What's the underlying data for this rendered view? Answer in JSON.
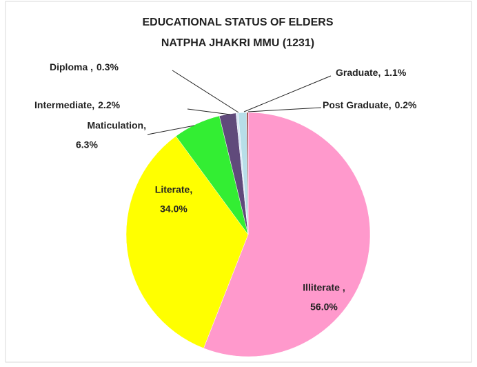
{
  "chart_data": {
    "type": "pie",
    "title": "EDUCATIONAL STATUS OF ELDERS",
    "subtitle": "NATPHA JHAKRI MMU (1231)",
    "categories": [
      "Illiterate ,",
      "Literate,",
      "Maticulation,",
      "Intermediate,",
      "Diploma ,",
      "Graduate,",
      "Post Graduate,"
    ],
    "values": [
      56.0,
      34.0,
      6.3,
      2.2,
      0.3,
      1.1,
      0.2
    ],
    "value_labels": [
      "56.0%",
      "34.0%",
      "6.3%",
      "2.2%",
      "0.3%",
      "1.1%",
      "0.2%"
    ],
    "colors": [
      "#ff99cc",
      "#ffff00",
      "#33ee33",
      "#604a7b",
      "#d9e6f7",
      "#b7dee8",
      "#943634"
    ]
  }
}
